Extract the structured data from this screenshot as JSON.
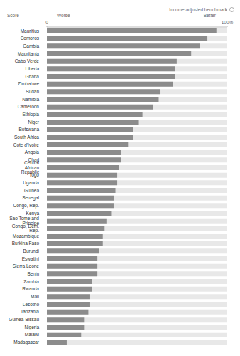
{
  "chart_data": {
    "type": "bar",
    "orientation": "horizontal",
    "subtitle": "Income adjusted benchmark",
    "annotations": [
      "Score",
      "Worse",
      "Better"
    ],
    "categories": [
      "Mauritius",
      "Comoros",
      "Gambia",
      "Mauritania",
      "Cabo Verde",
      "Liberia",
      "Ghana",
      "Zimbabwe",
      "Sudan",
      "Namibia",
      "Cameroon",
      "Ethiopia",
      "Niger",
      "Botswana",
      "South Africa",
      "Cote d'Ivoire",
      "Angola",
      "Chad",
      "Central African Republic",
      "Togo",
      "Uganda",
      "Guinea",
      "Senegal",
      "Congo, Rep.",
      "Kenya",
      "Sao Tome and Principe",
      "Congo, Dem. Rep.",
      "Mozambique",
      "Burkina Faso",
      "Burundi",
      "Eswatini",
      "Sierra Leone",
      "Benin",
      "Zambia",
      "Rwanda",
      "Mali",
      "Lesotho",
      "Tanzania",
      "Guinea-Bissau",
      "Nigeria",
      "Malawi",
      "Madagascar"
    ],
    "values": [
      94,
      89,
      85,
      80,
      72,
      71,
      71,
      70,
      63,
      62,
      59,
      53,
      51,
      48,
      48,
      45,
      41,
      41,
      40,
      39,
      39,
      38,
      37,
      37,
      36,
      33,
      32,
      31,
      31,
      29,
      28,
      28,
      28,
      25,
      25,
      24,
      24,
      23,
      21,
      21,
      19,
      11
    ],
    "color": "#8c8c8c",
    "xlim": [
      0,
      100
    ],
    "xticks": [
      0,
      {
        "value": 100,
        "label": "100%"
      }
    ]
  }
}
